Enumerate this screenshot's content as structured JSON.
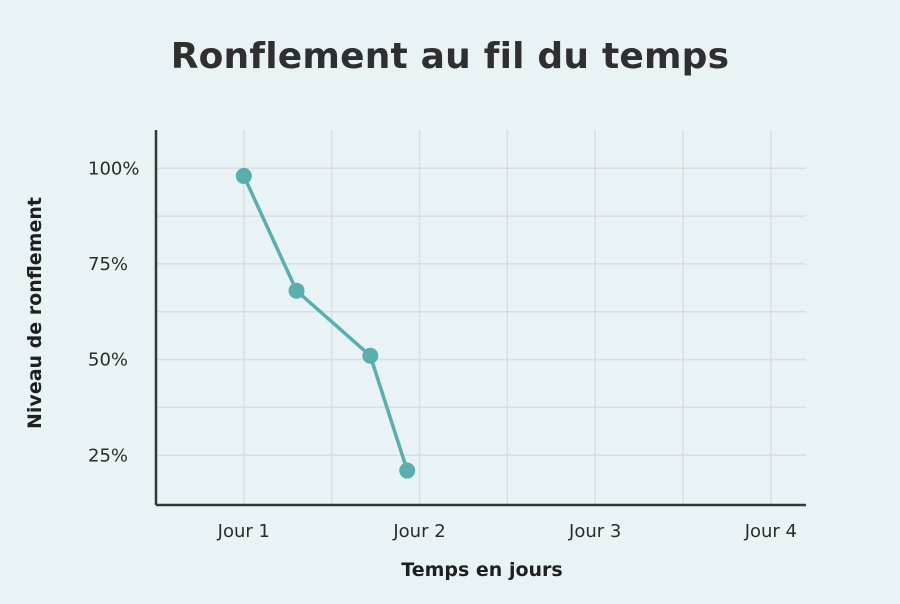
{
  "chart_data": {
    "type": "line",
    "title": "Ronflement au fil du temps",
    "xlabel": "Temps en jours",
    "ylabel": "Niveau de ronflement",
    "x_ticks": [
      "Jour 1",
      "Jour 2",
      "Jour 3",
      "Jour 4"
    ],
    "y_ticks": [
      "100%",
      "75%",
      "50%",
      "25%"
    ],
    "y_tick_values": [
      100,
      75,
      50,
      25
    ],
    "xlim": [
      0.5,
      4.2
    ],
    "ylim": [
      12,
      110
    ],
    "series": [
      {
        "x": [
          1.0,
          1.3,
          1.72,
          1.93
        ],
        "y": [
          98,
          68,
          51,
          21
        ]
      }
    ],
    "grid": true,
    "colors": {
      "line": "#5aaeae",
      "grid": "#d9dee1",
      "axis": "#2d3b36",
      "background": "#e9f3f6"
    }
  }
}
